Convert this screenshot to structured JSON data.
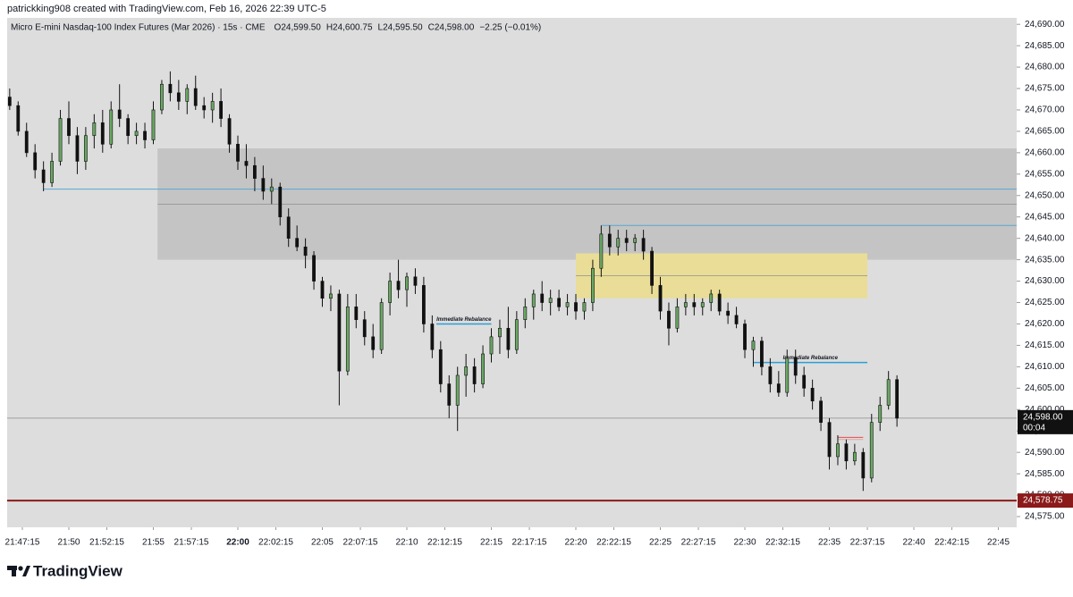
{
  "header": {
    "credit": "patrickking908 created with TradingView.com, Feb 16, 2026 22:39 UTC-5",
    "symbol": "Micro E-mini Nasdaq-100 Index Futures (Mar 2026) · 15s · CME",
    "open": "O24,599.50",
    "high": "H24,600.75",
    "low": "L24,595.50",
    "close": "C24,598.00",
    "change": "−2.25 (−0.01%)"
  },
  "logo": "TradingView",
  "chart_data": {
    "type": "candlestick",
    "up_color": "#6aa864",
    "down_color": "#111111",
    "wick_color": "#111111",
    "xlim": [
      "21:46:21",
      "22:46:05"
    ],
    "ylim": [
      24572.5,
      24691.5
    ],
    "xticks": [
      "21:47:15",
      "21:50",
      "21:52:15",
      "21:55",
      "21:57:15",
      "22:00",
      "22:02:15",
      "22:05",
      "22:07:15",
      "22:10",
      "22:12:15",
      "22:15",
      "22:17:15",
      "22:20",
      "22:22:15",
      "22:25",
      "22:27:15",
      "22:30",
      "22:32:15",
      "22:35",
      "22:37:15",
      "22:40",
      "22:42:15",
      "22:45"
    ],
    "yticks": [
      {
        "value": 24690,
        "label": "24,690.00"
      },
      {
        "value": 24685,
        "label": "24,685.00"
      },
      {
        "value": 24680,
        "label": "24,680.00"
      },
      {
        "value": 24675,
        "label": "24,675.00"
      },
      {
        "value": 24670,
        "label": "24,670.00"
      },
      {
        "value": 24665,
        "label": "24,665.00"
      },
      {
        "value": 24660,
        "label": "24,660.00"
      },
      {
        "value": 24655,
        "label": "24,655.00"
      },
      {
        "value": 24650,
        "label": "24,650.00"
      },
      {
        "value": 24645,
        "label": "24,645.00"
      },
      {
        "value": 24640,
        "label": "24,640.00"
      },
      {
        "value": 24635,
        "label": "24,635.00"
      },
      {
        "value": 24630,
        "label": "24,630.00"
      },
      {
        "value": 24625,
        "label": "24,625.00"
      },
      {
        "value": 24620,
        "label": "24,620.00"
      },
      {
        "value": 24615,
        "label": "24,615.00"
      },
      {
        "value": 24610,
        "label": "24,610.00"
      },
      {
        "value": 24605,
        "label": "24,605.00"
      },
      {
        "value": 24600,
        "label": "24,600.00"
      },
      {
        "value": 24595,
        "label": "24,595.00"
      },
      {
        "value": 24590,
        "label": "24,590.00"
      },
      {
        "value": 24585,
        "label": "24,585.00"
      },
      {
        "value": 24580,
        "label": "24,580.00"
      },
      {
        "value": 24575,
        "label": "24,575.00"
      }
    ],
    "x": [
      "21:46:30",
      "21:47:00",
      "21:47:30",
      "21:48:00",
      "21:48:30",
      "21:49:00",
      "21:49:30",
      "21:50:00",
      "21:50:30",
      "21:51:00",
      "21:51:30",
      "21:52:00",
      "21:52:30",
      "21:53:00",
      "21:53:30",
      "21:54:00",
      "21:54:30",
      "21:55:00",
      "21:55:30",
      "21:56:00",
      "21:56:30",
      "21:57:00",
      "21:57:30",
      "21:58:00",
      "21:58:30",
      "21:59:00",
      "21:59:30",
      "22:00:00",
      "22:00:30",
      "22:01:00",
      "22:01:30",
      "22:02:00",
      "22:02:30",
      "22:03:00",
      "22:03:30",
      "22:04:00",
      "22:04:30",
      "22:05:00",
      "22:05:30",
      "22:06:00",
      "22:06:30",
      "22:07:00",
      "22:07:30",
      "22:08:00",
      "22:08:30",
      "22:09:00",
      "22:09:30",
      "22:10:00",
      "22:10:30",
      "22:11:00",
      "22:11:30",
      "22:12:00",
      "22:12:30",
      "22:13:00",
      "22:13:30",
      "22:14:00",
      "22:14:30",
      "22:15:00",
      "22:15:30",
      "22:16:00",
      "22:16:30",
      "22:17:00",
      "22:17:30",
      "22:18:00",
      "22:18:30",
      "22:19:00",
      "22:19:30",
      "22:20:00",
      "22:20:30",
      "22:21:00",
      "22:21:30",
      "22:22:00",
      "22:22:30",
      "22:23:00",
      "22:23:30",
      "22:24:00",
      "22:24:30",
      "22:25:00",
      "22:25:30",
      "22:26:00",
      "22:26:30",
      "22:27:00",
      "22:27:30",
      "22:28:00",
      "22:28:30",
      "22:29:00",
      "22:29:30",
      "22:30:00",
      "22:30:30",
      "22:31:00",
      "22:31:30",
      "22:32:00",
      "22:32:30",
      "22:33:00",
      "22:33:30",
      "22:34:00",
      "22:34:30",
      "22:35:00",
      "22:35:30",
      "22:36:00",
      "22:36:30",
      "22:37:00",
      "22:37:30",
      "22:38:00",
      "22:38:30",
      "22:39:00"
    ],
    "open": [
      24673,
      24671,
      24665,
      24660,
      24656,
      24653,
      24658,
      24668,
      24664,
      24658,
      24664,
      24667,
      24662,
      24670,
      24668,
      24664,
      24665,
      24663,
      24670,
      24676,
      24674,
      24672,
      24675,
      24671,
      24670,
      24672,
      24668,
      24662,
      24658,
      24657,
      24654,
      24651,
      24652,
      24645,
      24640,
      24638,
      24636,
      24630,
      24626,
      24627,
      24609,
      24624,
      24621,
      24617,
      24614,
      24625,
      24630,
      24628,
      24631,
      24629,
      24620,
      24614,
      24606,
      24601,
      24608,
      24610,
      24606,
      24613,
      24617,
      24619,
      24614,
      24621,
      24624,
      24627,
      24625,
      24626,
      24624,
      24625,
      24623,
      24625,
      24633,
      24641,
      24638,
      24640,
      24639,
      24640,
      24637,
      24629,
      24623,
      24619,
      24624,
      24625,
      24624,
      24625,
      24627,
      24623,
      24622,
      24620,
      24614,
      24616,
      24610,
      24606,
      24604,
      24612,
      24608,
      24605,
      24602,
      24597,
      24589,
      24592,
      24588,
      24590,
      24584,
      24597,
      24601,
      24607
    ],
    "high": [
      24675,
      24672,
      24667,
      24662,
      24658,
      24660,
      24670,
      24672,
      24666,
      24666,
      24669,
      24670,
      24672,
      24676,
      24669,
      24667,
      24667,
      24672,
      24677,
      24679,
      24677,
      24676,
      24678,
      24673,
      24674,
      24675,
      24669,
      24664,
      24662,
      24659,
      24657,
      24654,
      24653,
      24647,
      24643,
      24640,
      24637,
      24631,
      24629,
      24628,
      24627,
      24627,
      24623,
      24620,
      24626,
      24632,
      24635,
      24632,
      24633,
      24631,
      24622,
      24616,
      24608,
      24610,
      24613,
      24612,
      24615,
      24619,
      24621,
      24624,
      24623,
      24626,
      24628,
      24630,
      24628,
      24628,
      24627,
      24627,
      24626,
      24635,
      24643,
      24643,
      24642,
      24642,
      24641,
      24642,
      24638,
      24631,
      24625,
      24626,
      24627,
      24627,
      24626,
      24628,
      24628,
      24625,
      24624,
      24621,
      24617,
      24617,
      24612,
      24609,
      24614,
      24614,
      24610,
      24607,
      24603,
      24598,
      24594,
      24593,
      24592,
      24591,
      24599,
      24603,
      24609,
      24608
    ],
    "low": [
      24670,
      24664,
      24659,
      24654,
      24651,
      24652,
      24657,
      24662,
      24655,
      24656,
      24661,
      24660,
      24661,
      24666,
      24662,
      24662,
      24661,
      24662,
      24669,
      24672,
      24670,
      24669,
      24670,
      24668,
      24667,
      24666,
      24660,
      24656,
      24654,
      24651,
      24649,
      24648,
      24643,
      24638,
      24637,
      24633,
      24628,
      24624,
      24623,
      24601,
      24608,
      24619,
      24615,
      24612,
      24613,
      24622,
      24626,
      24624,
      24627,
      24618,
      24612,
      24604,
      24598,
      24595,
      24603,
      24604,
      24605,
      24611,
      24613,
      24612,
      24613,
      24619,
      24621,
      24623,
      24622,
      24623,
      24622,
      24621,
      24621,
      24623,
      24631,
      24636,
      24636,
      24637,
      24637,
      24635,
      24627,
      24621,
      24615,
      24618,
      24622,
      24622,
      24622,
      24623,
      24622,
      24620,
      24619,
      24612,
      24610,
      24608,
      24604,
      24603,
      24603,
      24606,
      24603,
      24600,
      24595,
      24586,
      24587,
      24586,
      24587,
      24581,
      24583,
      24595,
      24600,
      24596
    ],
    "close": [
      24671,
      24665,
      24660,
      24656,
      24653,
      24658,
      24668,
      24664,
      24658,
      24664,
      24667,
      24662,
      24670,
      24668,
      24664,
      24665,
      24663,
      24670,
      24676,
      24674,
      24672,
      24675,
      24671,
      24670,
      24672,
      24668,
      24662,
      24658,
      24657,
      24654,
      24651,
      24652,
      24645,
      24640,
      24638,
      24636,
      24630,
      24626,
      24627,
      24609,
      24624,
      24621,
      24617,
      24614,
      24625,
      24630,
      24628,
      24631,
      24629,
      24620,
      24614,
      24606,
      24601,
      24608,
      24610,
      24606,
      24613,
      24617,
      24619,
      24614,
      24621,
      24624,
      24627,
      24625,
      24626,
      24624,
      24625,
      24623,
      24625,
      24633,
      24641,
      24638,
      24640,
      24639,
      24640,
      24637,
      24629,
      24623,
      24619,
      24624,
      24625,
      24624,
      24625,
      24627,
      24623,
      24622,
      24620,
      24614,
      24616,
      24610,
      24606,
      24604,
      24612,
      24608,
      24605,
      24602,
      24597,
      24589,
      24592,
      24588,
      24590,
      24584,
      24597,
      24601,
      24607,
      24598
    ],
    "zones": [
      {
        "from": "21:55:15",
        "low": 24635,
        "high": 24661,
        "color": "#c4c4c4"
      },
      {
        "from": "22:20:00",
        "to": "22:37:15",
        "low": 24626,
        "high": 24636.5,
        "color": "#e9dd97"
      }
    ],
    "lines": [
      {
        "from": "21:48:30",
        "price": 24651.5,
        "color": "#5aa6cf"
      },
      {
        "from": "22:21:30",
        "price": 24643,
        "color": "#5aa6cf"
      },
      {
        "from": "22:35:30",
        "to": "22:37:00",
        "price": 24593.5,
        "color": "#e05050"
      },
      {
        "from": "22:35:30",
        "to": "22:37:00",
        "price": 24593,
        "color": "#f0a0a0"
      }
    ],
    "annotations": [
      {
        "text": "Immediate Rebalance",
        "from": "22:11:45",
        "to": "22:15:00",
        "price": 24620,
        "color": "#2a9fd6"
      },
      {
        "text": "Immediate Rebalance",
        "from": "22:30:30",
        "to": "22:37:15",
        "price": 24611,
        "color": "#2a9fd6"
      }
    ],
    "last_price": {
      "value": 24598,
      "label": "24,598.00",
      "countdown": "00:04"
    },
    "level": {
      "value": 24578.75,
      "label": "24,578.75",
      "color": "#8b1a1a"
    }
  }
}
